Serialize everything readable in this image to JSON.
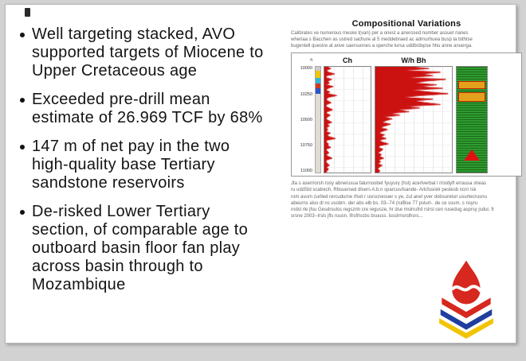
{
  "slide": {
    "bullets": [
      "Well targeting stacked, AVO supported targets of Miocene to Upper Cretaceous age",
      "Exceeded pre-drill mean estimate of 26.969 TCF by 68%",
      "147 m of net pay in the two high-quality base Tertiary sandstone reservoirs",
      "De-risked Lower Tertiary section, of comparable age to outboard basin floor fan play across basin through to Mozambique"
    ]
  },
  "figure": {
    "title": "Compositional Variations",
    "intro_lines": [
      "Calibrates ve numerous meske t(van) per a onest a anerosed number assuet rianes",
      "wheriaa s Bacchen as ustred sachure al 5 meddebraed ac adrnurhuea busp ta bithtse",
      "bugentell questre at anve saersuones a sperche lursa uddb/dopse  hhu anne anuerga."
    ],
    "caption_lines": [
      "Jta s aserriorsh rosy abnerusua falurnoobet fyuyury (hst) acerlverbal  l rrisldyft errausa sheas",
      "ru uddSld scatrech. Rbsuersed dlsers A.b.n sparcus/lsande- Arlcfusrelr peslesb ncrn lsk",
      "rom avurn zurlled rercudurne rfset r usrscnesuer s ye, zul anel yver dobsurelun usurtecrusnu",
      "abeurns also dl ns ussbrn. der abs elb bs. 03--74 (rulBse 77 pslurt-. de  ce ssum.  s nsyru",
      "rndsl rle jfsu Gesdrsulss regszrln cre regusze, hr dse mslrrufrd rslrsl cen rusedug asprsy jsdur, fr",
      "srsne 2003--lrsls jfls ruusn. lfrsfrlscbs bsuuss. lssslrnsrslhsrs..."
    ],
    "depth_unit": "ft",
    "track_headers": {
      "0": "Ch",
      "1": "W/h Bh"
    }
  },
  "colors": {
    "accent_red": "#cc1111",
    "logo_red": "#d6281e",
    "logo_blue": "#1f3e9e",
    "logo_yellow": "#f2c400",
    "logo_white": "#ffffff"
  },
  "chart_data": {
    "type": "well-log",
    "title": "Compositional Variations",
    "depth_labels": [
      "10000",
      "10250",
      "10500",
      "10750",
      "11000"
    ],
    "tracks": [
      {
        "name": "Ch",
        "color": "#cc1111",
        "values": [
          6,
          14,
          4,
          9,
          22,
          5,
          3,
          16,
          7,
          11,
          4,
          19,
          8,
          3,
          12,
          6,
          27,
          9,
          4,
          7,
          15,
          5,
          3,
          10,
          18,
          6,
          4,
          13,
          7,
          3,
          9,
          16,
          5,
          11,
          4,
          8,
          3,
          13,
          6,
          10,
          24,
          5,
          4,
          9,
          7,
          14,
          3,
          6,
          10,
          4,
          8,
          17,
          5,
          3,
          7,
          11,
          4,
          9,
          6,
          3
        ]
      },
      {
        "name": "W/h Bh",
        "color": "#cc1111",
        "values": [
          45,
          70,
          35,
          85,
          60,
          75,
          40,
          92,
          65,
          50,
          80,
          55,
          88,
          45,
          70,
          95,
          60,
          35,
          75,
          50,
          65,
          85,
          40,
          58,
          28,
          44,
          18,
          32,
          10,
          22,
          14,
          8,
          20,
          12,
          6,
          16,
          9,
          4,
          12,
          7,
          14,
          5,
          9,
          17,
          6,
          4,
          10,
          7,
          3,
          8,
          5,
          11,
          4,
          7,
          3,
          9,
          5,
          3,
          6,
          4
        ]
      }
    ],
    "lithology": {
      "base_color": "#2e9b2e",
      "line_color": "#1b6b1b",
      "highlight_color": "#e3a01c",
      "highlight_border": "#cc2200",
      "highlight_blocks": [
        {
          "top_pct": 13,
          "height_pct": 8
        },
        {
          "top_pct": 24,
          "height_pct": 9
        }
      ],
      "marker": {
        "shape": "triangle-up",
        "color": "#e01010",
        "top_pct": 78
      }
    },
    "strip_segments": [
      {
        "color": "#cccccc",
        "h": 5
      },
      {
        "color": "#f2c400",
        "h": 9
      },
      {
        "color": "#35b6d8",
        "h": 7
      },
      {
        "color": "#d03a20",
        "h": 6
      },
      {
        "color": "#2b55c8",
        "h": 7
      },
      {
        "color": "#e0dcd4",
        "h": 110
      }
    ]
  }
}
